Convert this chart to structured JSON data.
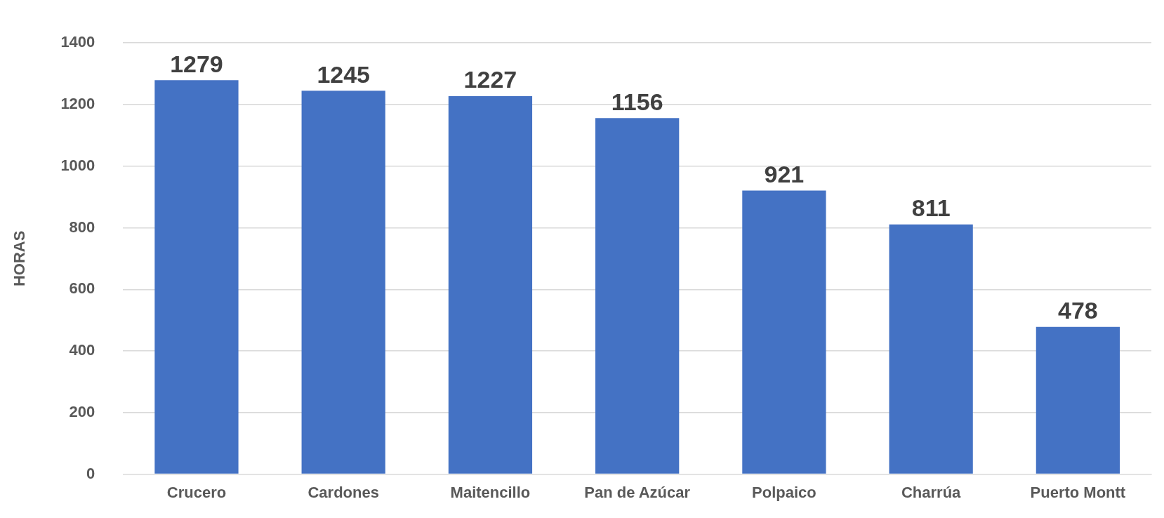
{
  "chart_data": {
    "type": "bar",
    "ylabel": "HORAS",
    "categories": [
      "Crucero",
      "Cardones",
      "Maitencillo",
      "Pan de Azúcar",
      "Polpaico",
      "Charrúa",
      "Puerto Montt"
    ],
    "values": [
      1279,
      1245,
      1227,
      1156,
      921,
      811,
      478
    ],
    "color": "#4472c4",
    "ylim": [
      0,
      1400
    ],
    "yticks": [
      0,
      200,
      400,
      600,
      800,
      1000,
      1200,
      1400
    ],
    "grid": "y",
    "data_labels": true
  }
}
